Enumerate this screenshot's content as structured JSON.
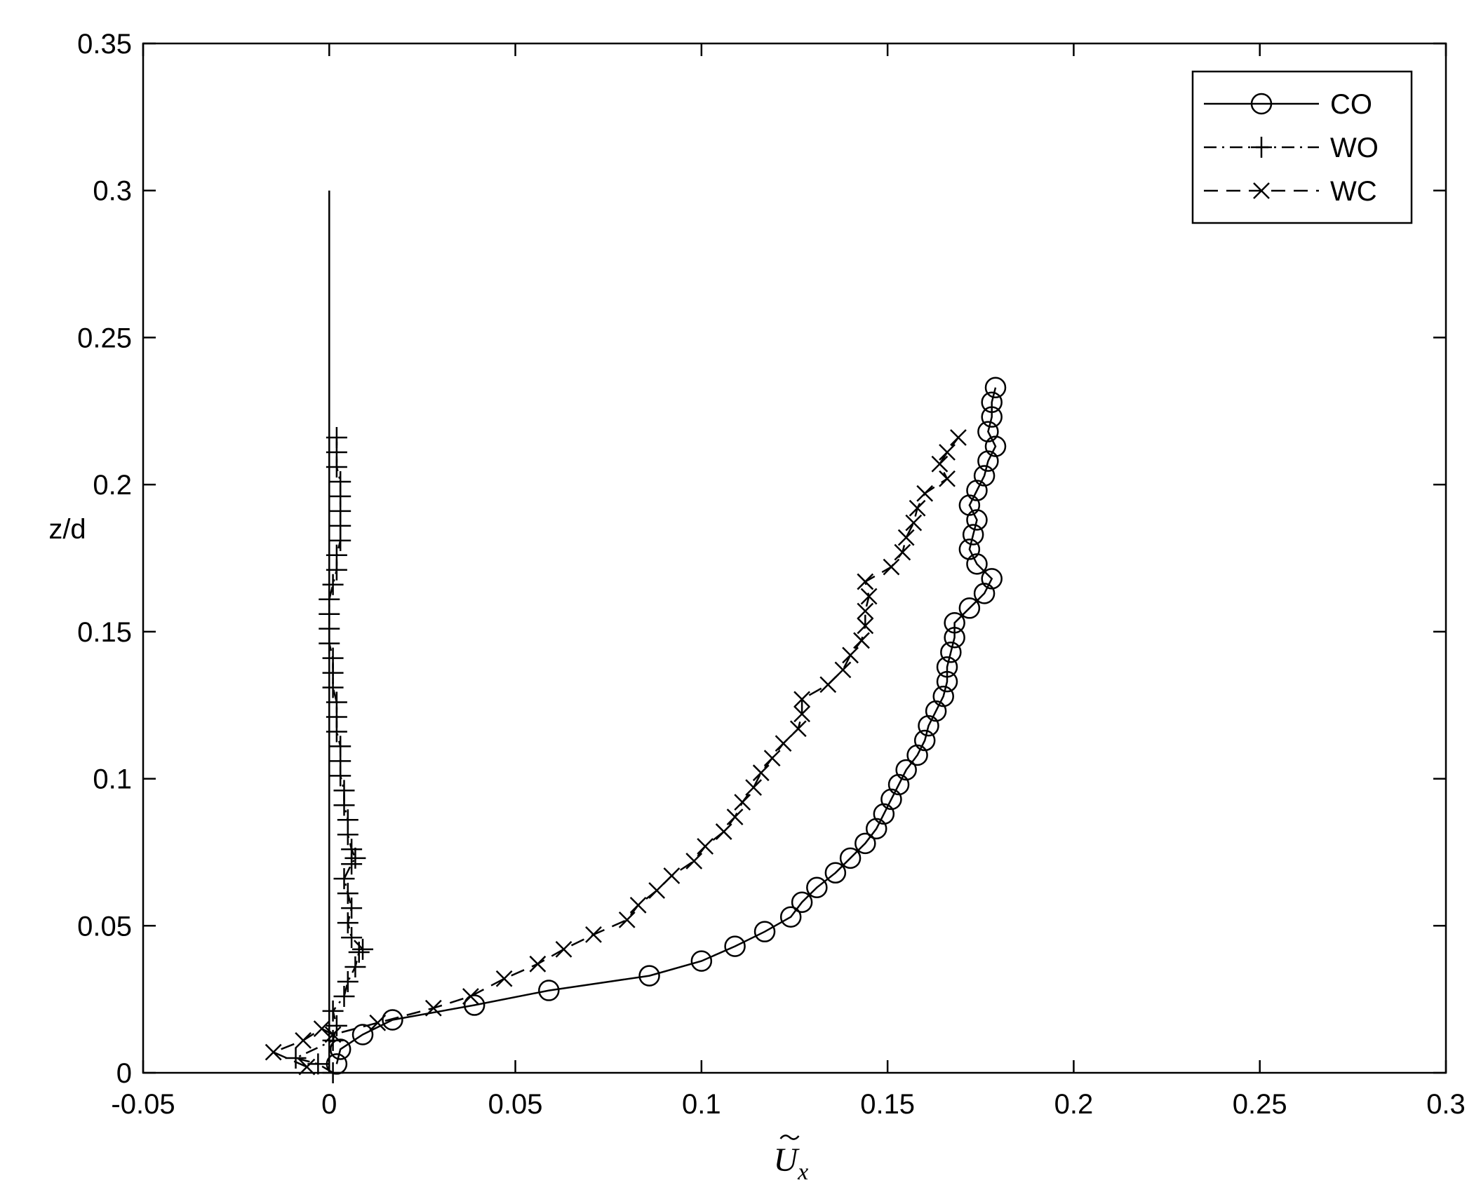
{
  "chart_data": {
    "type": "line",
    "title": "",
    "xlabel": "Ũx",
    "xlabel_base": "U",
    "xlabel_sub": "x",
    "ylabel": "z/d",
    "xlim": [
      -0.05,
      0.3
    ],
    "ylim": [
      0,
      0.35
    ],
    "xticks": [
      -0.05,
      0,
      0.05,
      0.1,
      0.15,
      0.2,
      0.25,
      0.3
    ],
    "xtick_labels": [
      "-0.05",
      "0",
      "0.05",
      "0.1",
      "0.15",
      "0.2",
      "0.25",
      "0.3"
    ],
    "yticks": [
      0,
      0.05,
      0.1,
      0.15,
      0.2,
      0.25,
      0.3,
      0.35
    ],
    "ytick_labels": [
      "0",
      "0.05",
      "0.1",
      "0.15",
      "0.2",
      "0.25",
      "0.3",
      "0.35"
    ],
    "grid": false,
    "legend_position": "top-right",
    "color": "#000000",
    "reference_line": {
      "x": 0,
      "y": [
        0,
        0.3
      ]
    },
    "series": [
      {
        "name": "CO",
        "line_style": "solid",
        "marker": "circle",
        "points": [
          [
            0.002,
            0.003
          ],
          [
            0.003,
            0.008
          ],
          [
            0.009,
            0.013
          ],
          [
            0.017,
            0.018
          ],
          [
            0.039,
            0.023
          ],
          [
            0.059,
            0.028
          ],
          [
            0.086,
            0.033
          ],
          [
            0.1,
            0.038
          ],
          [
            0.109,
            0.043
          ],
          [
            0.117,
            0.048
          ],
          [
            0.124,
            0.053
          ],
          [
            0.127,
            0.058
          ],
          [
            0.131,
            0.063
          ],
          [
            0.136,
            0.068
          ],
          [
            0.14,
            0.073
          ],
          [
            0.144,
            0.078
          ],
          [
            0.147,
            0.083
          ],
          [
            0.149,
            0.088
          ],
          [
            0.151,
            0.093
          ],
          [
            0.153,
            0.098
          ],
          [
            0.155,
            0.103
          ],
          [
            0.158,
            0.108
          ],
          [
            0.16,
            0.113
          ],
          [
            0.161,
            0.118
          ],
          [
            0.163,
            0.123
          ],
          [
            0.165,
            0.128
          ],
          [
            0.166,
            0.133
          ],
          [
            0.166,
            0.138
          ],
          [
            0.167,
            0.143
          ],
          [
            0.168,
            0.148
          ],
          [
            0.168,
            0.153
          ],
          [
            0.172,
            0.158
          ],
          [
            0.176,
            0.163
          ],
          [
            0.178,
            0.168
          ],
          [
            0.174,
            0.173
          ],
          [
            0.172,
            0.178
          ],
          [
            0.173,
            0.183
          ],
          [
            0.174,
            0.188
          ],
          [
            0.172,
            0.193
          ],
          [
            0.174,
            0.198
          ],
          [
            0.176,
            0.203
          ],
          [
            0.177,
            0.208
          ],
          [
            0.179,
            0.213
          ],
          [
            0.177,
            0.218
          ],
          [
            0.178,
            0.223
          ],
          [
            0.178,
            0.228
          ],
          [
            0.179,
            0.233
          ]
        ]
      },
      {
        "name": "WO",
        "line_style": "dashdot",
        "marker": "plus",
        "points": [
          [
            0.001,
            0.0
          ],
          [
            -0.003,
            0.003
          ],
          [
            -0.009,
            0.005
          ],
          [
            0.001,
            0.011
          ],
          [
            0.002,
            0.016
          ],
          [
            0.001,
            0.021
          ],
          [
            0.004,
            0.026
          ],
          [
            0.005,
            0.031
          ],
          [
            0.007,
            0.036
          ],
          [
            0.008,
            0.041
          ],
          [
            0.009,
            0.042
          ],
          [
            0.006,
            0.046
          ],
          [
            0.005,
            0.051
          ],
          [
            0.006,
            0.056
          ],
          [
            0.005,
            0.061
          ],
          [
            0.004,
            0.066
          ],
          [
            0.006,
            0.071
          ],
          [
            0.007,
            0.073
          ],
          [
            0.006,
            0.076
          ],
          [
            0.005,
            0.081
          ],
          [
            0.005,
            0.086
          ],
          [
            0.004,
            0.091
          ],
          [
            0.004,
            0.096
          ],
          [
            0.003,
            0.101
          ],
          [
            0.003,
            0.106
          ],
          [
            0.003,
            0.111
          ],
          [
            0.002,
            0.116
          ],
          [
            0.002,
            0.121
          ],
          [
            0.002,
            0.126
          ],
          [
            0.001,
            0.131
          ],
          [
            0.001,
            0.136
          ],
          [
            0.001,
            0.141
          ],
          [
            0.0,
            0.146
          ],
          [
            0.0,
            0.151
          ],
          [
            0.0,
            0.156
          ],
          [
            0.0,
            0.161
          ],
          [
            0.001,
            0.166
          ],
          [
            0.002,
            0.171
          ],
          [
            0.002,
            0.176
          ],
          [
            0.003,
            0.181
          ],
          [
            0.003,
            0.186
          ],
          [
            0.003,
            0.191
          ],
          [
            0.003,
            0.196
          ],
          [
            0.003,
            0.201
          ],
          [
            0.002,
            0.206
          ],
          [
            0.002,
            0.211
          ],
          [
            0.002,
            0.216
          ]
        ]
      },
      {
        "name": "WC",
        "line_style": "dashed",
        "marker": "cross",
        "points": [
          [
            -0.006,
            0.002
          ],
          [
            -0.015,
            0.007
          ],
          [
            -0.007,
            0.011
          ],
          [
            -0.002,
            0.015
          ],
          [
            0.001,
            0.013
          ],
          [
            0.013,
            0.017
          ],
          [
            0.028,
            0.022
          ],
          [
            0.038,
            0.026
          ],
          [
            0.047,
            0.032
          ],
          [
            0.056,
            0.037
          ],
          [
            0.063,
            0.042
          ],
          [
            0.071,
            0.047
          ],
          [
            0.08,
            0.052
          ],
          [
            0.083,
            0.057
          ],
          [
            0.088,
            0.062
          ],
          [
            0.092,
            0.067
          ],
          [
            0.098,
            0.072
          ],
          [
            0.101,
            0.077
          ],
          [
            0.106,
            0.082
          ],
          [
            0.109,
            0.087
          ],
          [
            0.111,
            0.092
          ],
          [
            0.114,
            0.097
          ],
          [
            0.116,
            0.102
          ],
          [
            0.119,
            0.107
          ],
          [
            0.122,
            0.112
          ],
          [
            0.126,
            0.117
          ],
          [
            0.127,
            0.122
          ],
          [
            0.127,
            0.127
          ],
          [
            0.134,
            0.132
          ],
          [
            0.138,
            0.137
          ],
          [
            0.14,
            0.142
          ],
          [
            0.143,
            0.147
          ],
          [
            0.144,
            0.152
          ],
          [
            0.144,
            0.157
          ],
          [
            0.145,
            0.162
          ],
          [
            0.144,
            0.167
          ],
          [
            0.151,
            0.172
          ],
          [
            0.154,
            0.177
          ],
          [
            0.155,
            0.182
          ],
          [
            0.157,
            0.187
          ],
          [
            0.158,
            0.192
          ],
          [
            0.16,
            0.197
          ],
          [
            0.166,
            0.202
          ],
          [
            0.164,
            0.207
          ],
          [
            0.166,
            0.211
          ],
          [
            0.169,
            0.216
          ]
        ]
      }
    ]
  }
}
